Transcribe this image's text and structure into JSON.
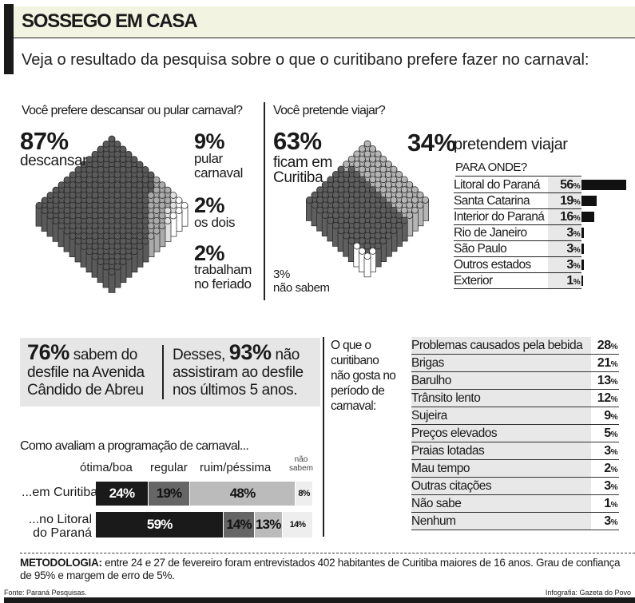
{
  "header": {
    "title": "SOSSEGO EM CASA",
    "subtitle": "Veja o resultado da pesquisa sobre o que o curitibano prefere fazer no carnaval:"
  },
  "colors": {
    "dark": "#1a1a1a",
    "mid_gray": "#666666",
    "light_gray": "#bbbbbb",
    "pale": "#eeeeee",
    "header_bg": "#f2f3e1",
    "box_bg": "#e6e6e6"
  },
  "chart_data": [
    {
      "type": "pie",
      "title": "Você prefere descansar ou pular carnaval?",
      "categories": [
        "descansar",
        "pular carnaval",
        "os dois",
        "trabalham no feriado"
      ],
      "values": [
        87,
        9,
        2,
        2
      ],
      "labels": [
        "87%",
        "9%",
        "2%",
        "2%"
      ]
    },
    {
      "type": "pie",
      "title": "Você pretende viajar?",
      "categories": [
        "ficam em Curitiba",
        "pretendem viajar",
        "não sabem"
      ],
      "values": [
        63,
        34,
        3
      ],
      "labels": [
        "63%",
        "34%",
        "3%"
      ]
    },
    {
      "type": "bar",
      "title": "PARA ONDE?",
      "categories": [
        "Litoral do Paraná",
        "Santa Catarina",
        "Interior do Paraná",
        "Rio de Janeiro",
        "São Paulo",
        "Outros estados",
        "Exterior"
      ],
      "values": [
        56,
        19,
        16,
        3,
        3,
        3,
        1
      ],
      "labels": [
        "56",
        "19",
        "16",
        "3",
        "3",
        "3",
        "1"
      ]
    },
    {
      "type": "bar",
      "title": "Como avaliam a programação de carnaval...",
      "stacked": true,
      "categories": [
        "...em Curitiba",
        "...no Litoral do Paraná"
      ],
      "series": [
        {
          "name": "ótima/boa",
          "values": [
            24,
            59
          ]
        },
        {
          "name": "regular",
          "values": [
            19,
            14
          ]
        },
        {
          "name": "ruim/péssima",
          "values": [
            48,
            13
          ]
        },
        {
          "name": "não sabem",
          "values": [
            8,
            14
          ]
        }
      ]
    },
    {
      "type": "table",
      "title": "O que o curitibano não gosta no período de carnaval:",
      "categories": [
        "Problemas causados pela bebida",
        "Brigas",
        "Barulho",
        "Trânsito lento",
        "Sujeira",
        "Preços elevados",
        "Praias lotadas",
        "Mau tempo",
        "Outras citações",
        "Não sabe",
        "Nenhum"
      ],
      "values": [
        28,
        21,
        13,
        12,
        9,
        5,
        3,
        2,
        3,
        1,
        3
      ],
      "labels": [
        "28",
        "21",
        "13",
        "12",
        "9",
        "5",
        "3",
        "2",
        "3",
        "1",
        "3"
      ]
    }
  ],
  "q1": {
    "big1": "87%",
    "lab1": "descansar",
    "big2": "9%",
    "lab2a": "pular",
    "lab2b": "carnaval",
    "big3": "2%",
    "lab3": "os dois",
    "big4": "2%",
    "lab4a": "trabalham",
    "lab4b": "no feriado"
  },
  "q2": {
    "big1": "63%",
    "lab1a": "ficam em",
    "lab1b": "Curitiba",
    "big2": "34%",
    "lab2": "pretendem viajar",
    "small3": "3%",
    "lab3": "não sabem"
  },
  "pct": "%",
  "box": {
    "a_big": "76%",
    "a_1": " sabem do",
    "a_2": "desfile na Avenida",
    "a_3": "Cândido de Abreu",
    "b_pre": "Desses, ",
    "b_big": "93%",
    "b_1": " não",
    "b_2": "assistiram ao desfile",
    "b_3": "nos últimos 5 anos."
  },
  "ratings_labels": {
    "nao_a": "não",
    "nao_b": "sabem",
    "row1": "...em Curitiba",
    "row2a": "...no Litoral",
    "row2b": "do Paraná",
    "v": [
      [
        "24%",
        "19%",
        "48%",
        "8%"
      ],
      [
        "59%",
        "14%",
        "13%",
        "14%"
      ]
    ]
  },
  "dislike_title": [
    "O que o",
    "curitibano",
    "não gosta no",
    "período de",
    "carnaval:"
  ],
  "footer": {
    "metodologia_label": "METODOLOGIA:",
    "metodologia_text": " entre 24 e 27 de fevereiro foram entrevistados 402 habitantes de Curitiba maiores de 16 anos. Grau de confiança de 95% e margem de erro de 5%.",
    "fonte": "Fonte: Paraná Pesquisas.",
    "infografia": "Infografia: Gazeta do Povo"
  }
}
